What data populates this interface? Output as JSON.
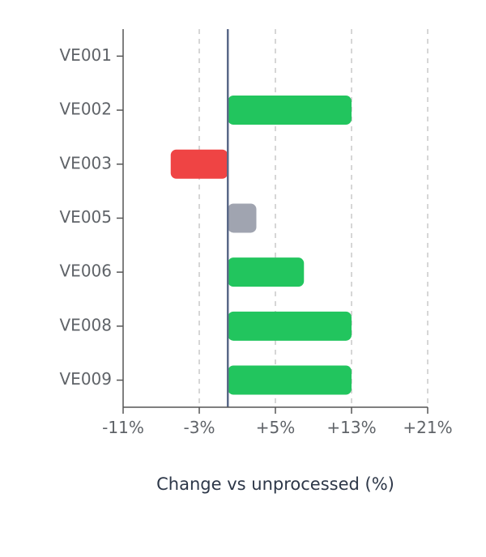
{
  "chart_data": {
    "type": "bar",
    "orientation": "horizontal",
    "categories": [
      "VE001",
      "VE002",
      "VE003",
      "VE005",
      "VE006",
      "VE008",
      "VE009"
    ],
    "values": [
      0,
      13,
      -6,
      3,
      8,
      13,
      13
    ],
    "xlabel": "Change vs unprocessed (%)",
    "ylabel": "",
    "xlim": [
      -11,
      21
    ],
    "xticks": [
      -11,
      -3,
      5,
      13,
      21
    ],
    "xtick_labels": [
      "-11%",
      "-3%",
      "+5%",
      "+13%",
      "+21%"
    ],
    "grid": "vertical dashed",
    "colors": {
      "positive": "#22c55e",
      "negative": "#ef4444",
      "neutral": "#a0a4b0",
      "zero_line": "#5a6888",
      "axis": "#555555",
      "grid": "#c8c8c8"
    },
    "neutral_threshold": 4
  }
}
